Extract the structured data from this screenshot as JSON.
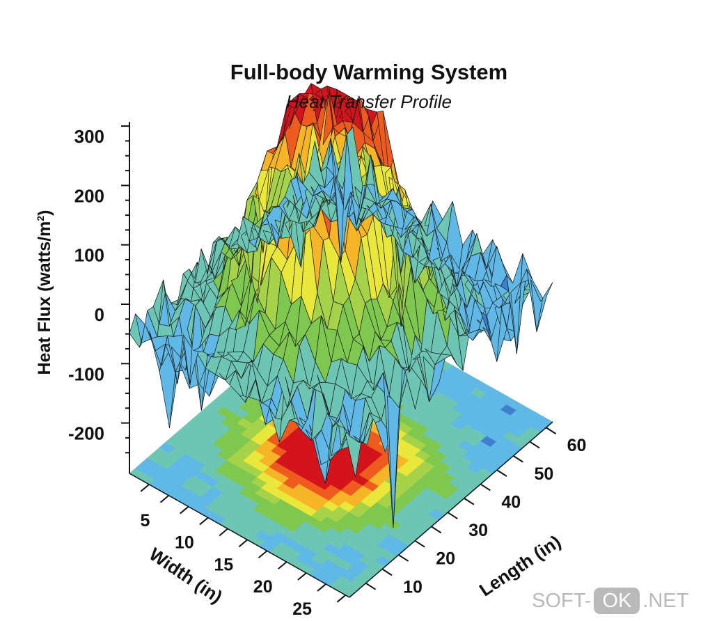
{
  "chart_data": {
    "type": "surface3d",
    "title": "Full-body Warming System",
    "subtitle": "Heat Transfer Profile",
    "zlabel": "Heat Flux (watts/m",
    "zlabel_sup": "2",
    "zlabel_end": ")",
    "xlabel": "Length (in)",
    "ylabel": "Width (in)",
    "z_ticks": [
      "300",
      "200",
      "100",
      "0",
      "-100",
      "-200"
    ],
    "x_ticks": [
      "10",
      "20",
      "30",
      "40",
      "50",
      "60"
    ],
    "y_ticks": [
      "5",
      "10",
      "15",
      "20",
      "25"
    ],
    "zlim": [
      -280,
      300
    ],
    "xlim": [
      0,
      62
    ],
    "ylim": [
      0,
      28
    ],
    "grid": {
      "nx": 34,
      "ny": 22
    },
    "peaks": [
      {
        "x": 24,
        "y": 14,
        "z": 175
      },
      {
        "x": 30,
        "y": 12,
        "z": 160
      },
      {
        "x": 36,
        "y": 16,
        "z": 120
      },
      {
        "x": 20,
        "y": 18,
        "z": 110
      },
      {
        "x": 26,
        "y": 8,
        "z": 95
      },
      {
        "x": 42,
        "y": 10,
        "z": 85
      },
      {
        "x": 16,
        "y": 12,
        "z": 80
      },
      {
        "x": 33,
        "y": 20,
        "z": 90
      }
    ],
    "colormap": [
      "#2c3f9e",
      "#3f7fd0",
      "#5fb8e6",
      "#6dc6b4",
      "#7ec850",
      "#a6d24a",
      "#e9e83a",
      "#f6b427",
      "#ee5b1f",
      "#d4141c"
    ]
  },
  "watermark": {
    "left": "SOFT-",
    "middle": "OK",
    "right": ".NET"
  }
}
